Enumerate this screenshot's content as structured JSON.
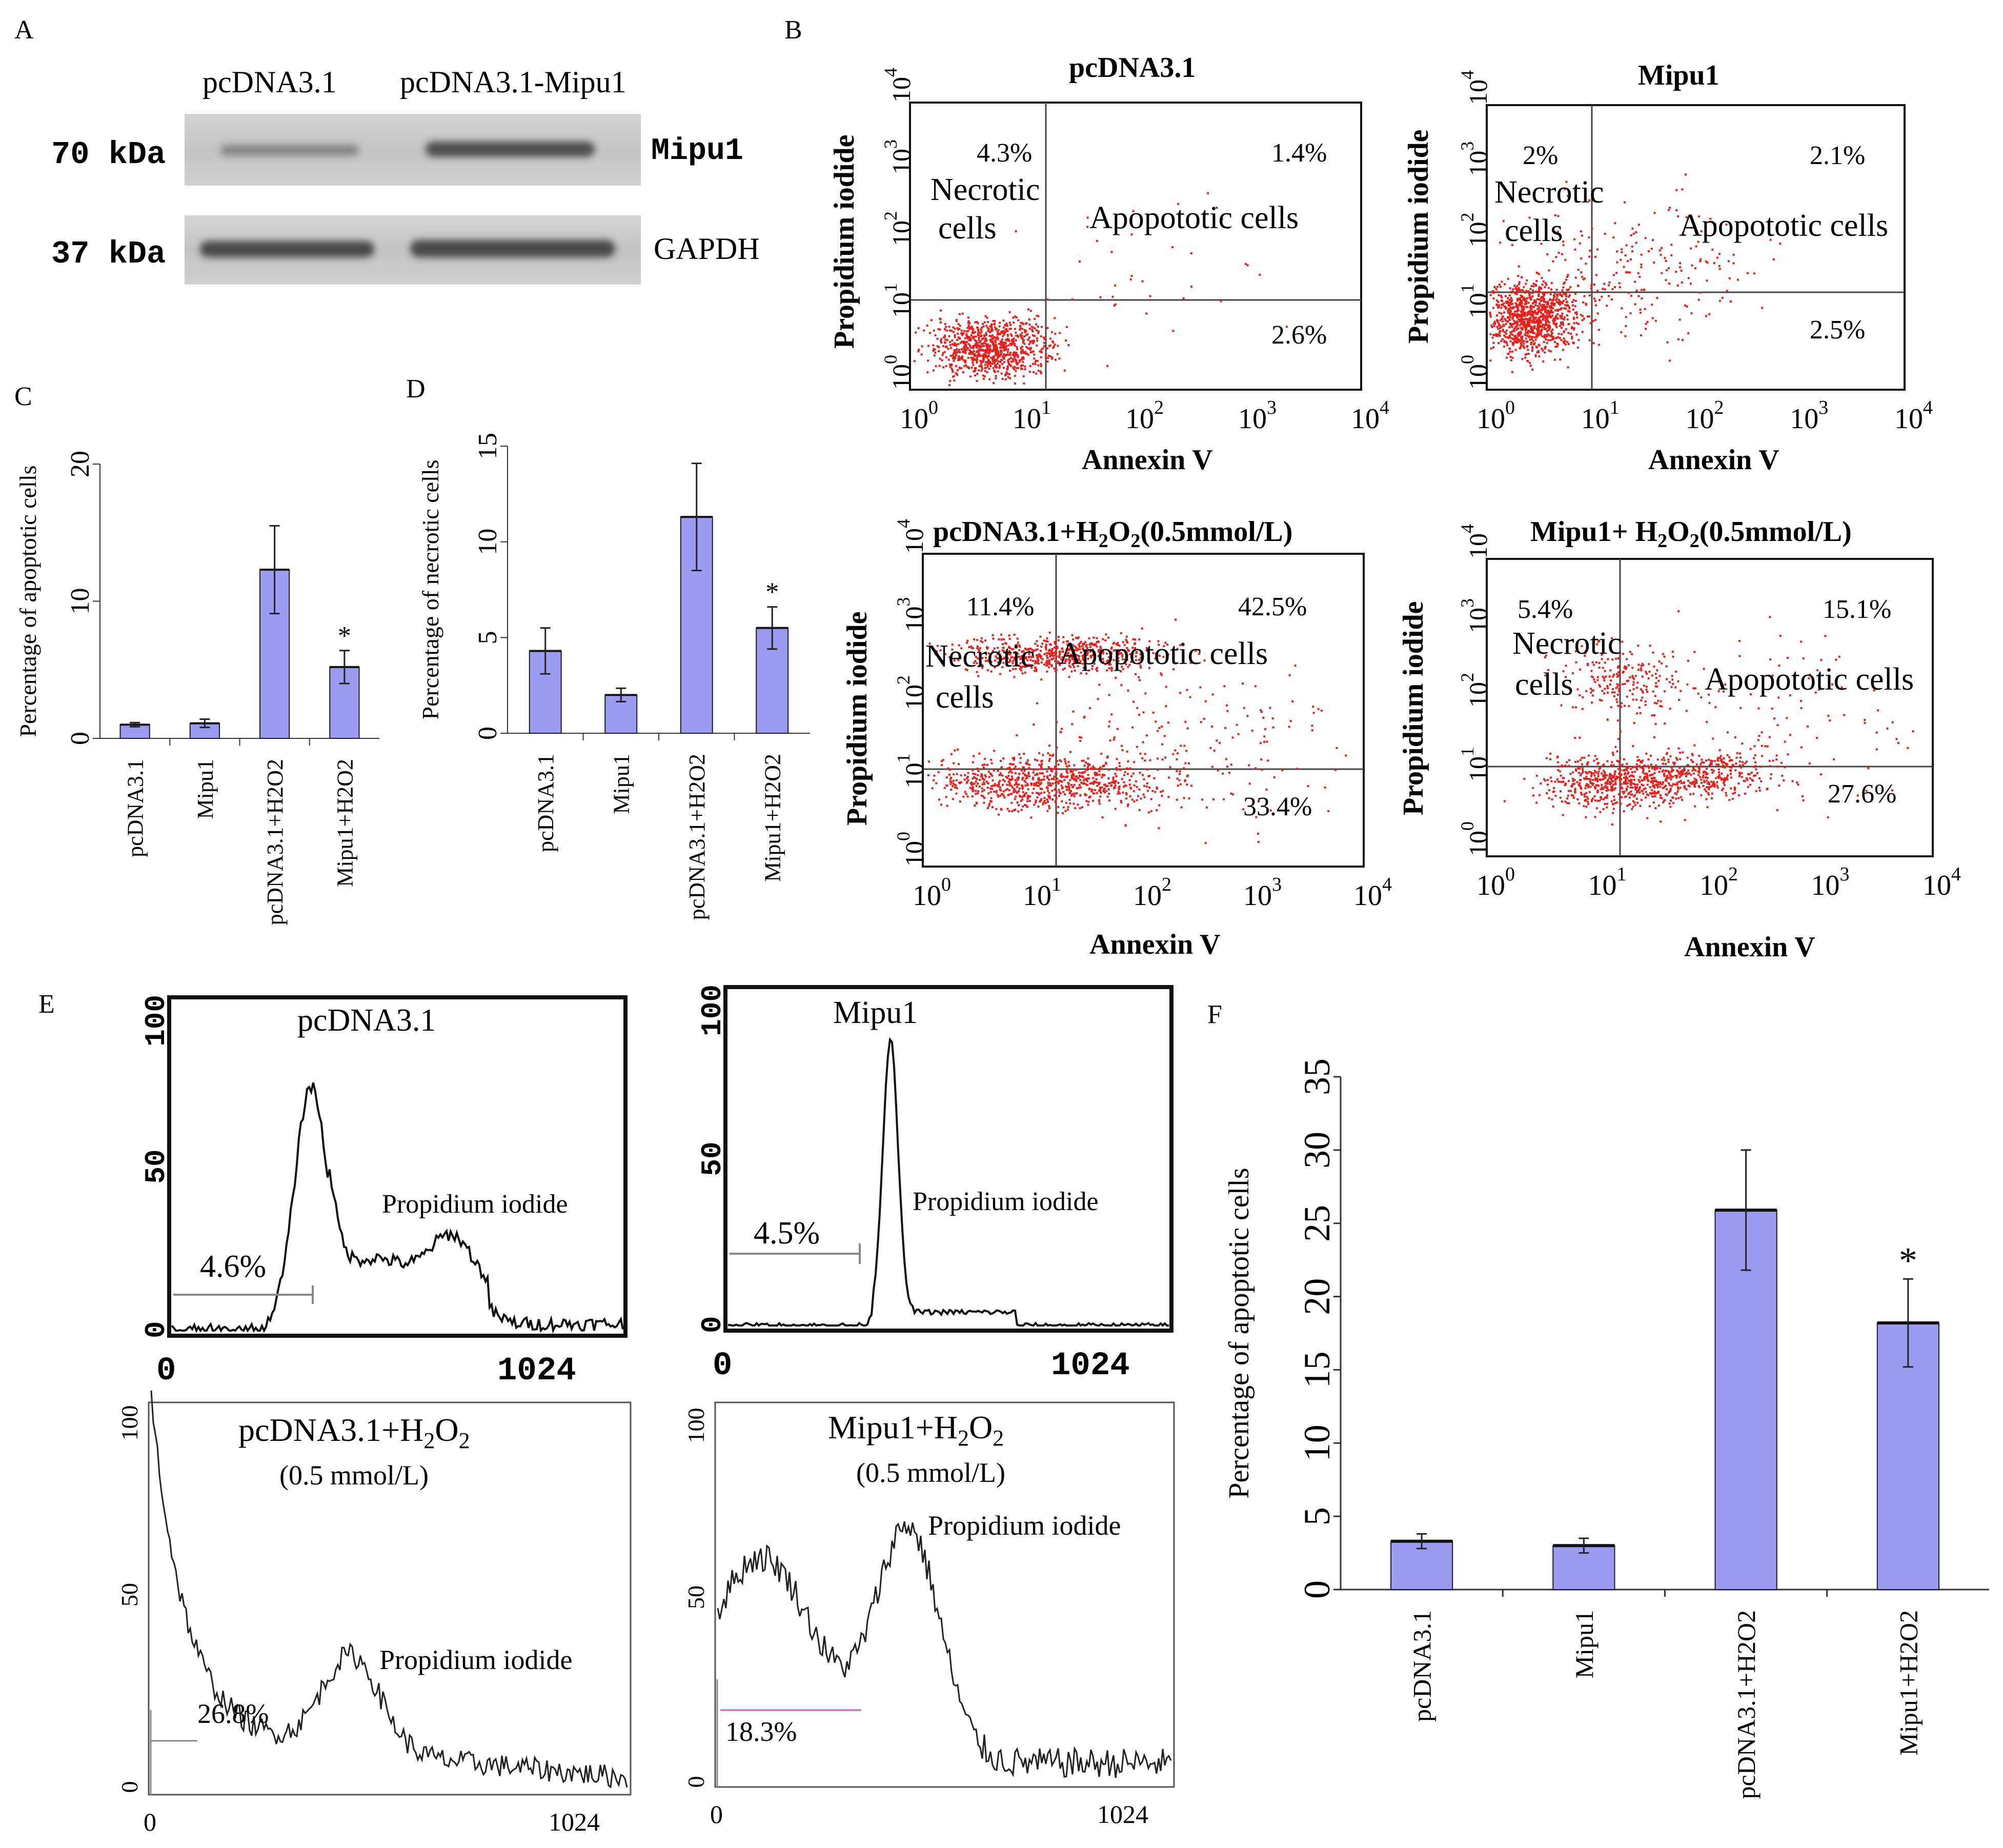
{
  "figure": {
    "panel_labels": [
      "A",
      "B",
      "C",
      "D",
      "E",
      "F"
    ],
    "colors": {
      "bar_fill": "#9b9bf2",
      "bar_stroke": "#1a1a1a",
      "dots": "#e8201c",
      "ink": "#111111",
      "band": "#3a3a3a",
      "gate_grey": "#888888",
      "gate_pink": "#c060c0"
    }
  },
  "western_blot": {
    "lane_labels": [
      "pcDNA3.1",
      "pcDNA3.1-Mipu1"
    ],
    "rows": [
      {
        "mw": "70  kDa",
        "protein": "Mipu1",
        "intensity": [
          0.45,
          0.85
        ]
      },
      {
        "mw": "37  kDa",
        "protein": "GAPDH",
        "intensity": [
          0.9,
          0.9
        ]
      }
    ]
  },
  "flow_cytometry": {
    "x_label": "Annexin V",
    "y_label": "Propidium iodide",
    "necrotic_label_1": "Necrotic",
    "necrotic_label_2": "cells",
    "apoptotic_label": "Apopototic cells",
    "tick_base": "10",
    "tick_exponents": [
      "0",
      "1",
      "2",
      "3",
      "4"
    ],
    "plots": [
      {
        "title": "pcDNA3.1",
        "title_suffix": "",
        "ul": "4.3%",
        "ur": "1.4%",
        "lr": "2.6%"
      },
      {
        "title": "Mipu1",
        "title_suffix": "",
        "ul": "2%",
        "ur": "2.1%",
        "lr": "2.5%"
      },
      {
        "title": "pcDNA3.1+H",
        "h2o2_sub": "2",
        "title_o": "O",
        "title_suffix": "(0.5mmol/L)",
        "ul": "11.4%",
        "ur": "42.5%",
        "lr": "33.4%"
      },
      {
        "title": "Mipu1+ H",
        "h2o2_sub": "2",
        "title_o": "O",
        "title_suffix": "(0.5mmol/L)",
        "ul": "5.4%",
        "ur": "15.1%",
        "lr": "27.6%"
      }
    ]
  },
  "histograms": {
    "x_label": "Propidium iodide",
    "x_min": "0",
    "x_max": "1024",
    "y_ticks": [
      "0",
      "50",
      "100"
    ],
    "plots": [
      {
        "title": "pcDNA3.1",
        "subtitle": "",
        "gate_value": "4.6%"
      },
      {
        "title": "Mipu1",
        "subtitle": "",
        "gate_value": "4.5%"
      },
      {
        "title": "pcDNA3.1+H",
        "title_sub": "2",
        "title_o": "O",
        "title_sub2": "2",
        "subtitle": "(0.5 mmol/L)",
        "gate_value": "26.8%"
      },
      {
        "title": "Mipu1+H",
        "title_sub": "2",
        "title_o": "O",
        "title_sub2": "2",
        "subtitle": "(0.5 mmol/L)",
        "gate_value": "18.3%"
      }
    ]
  },
  "chart_data": [
    {
      "panel": "C",
      "type": "bar",
      "categories": [
        "pcDNA3.1",
        "Mipu1",
        "pcDNA3.1+H2O2",
        "Mipu1+H2O2"
      ],
      "values": [
        1.0,
        1.1,
        12.3,
        5.2
      ],
      "errors": [
        0.15,
        0.3,
        3.2,
        1.2
      ],
      "significance": [
        "",
        "",
        "",
        "*"
      ],
      "ylabel": "Percentage of apoptotic cells",
      "ylim": [
        0,
        20
      ],
      "yticks": [
        "0",
        "10",
        "20"
      ]
    },
    {
      "panel": "D",
      "type": "bar",
      "categories": [
        "pcDNA3.1",
        "Mipu1",
        "pcDNA3.1+H2O2",
        "Mipu1+H2O2"
      ],
      "values": [
        4.3,
        2.0,
        11.3,
        5.5
      ],
      "errors": [
        1.2,
        0.35,
        2.8,
        1.1
      ],
      "significance": [
        "",
        "",
        "",
        "*"
      ],
      "ylabel": "Percentage of necrotic cells",
      "ylim": [
        0,
        15
      ],
      "yticks": [
        "0",
        "5",
        "10",
        "15"
      ]
    },
    {
      "panel": "F",
      "type": "bar",
      "categories": [
        "pcDNA3.1",
        "Mipu1",
        "pcDNA3.1+H2O2",
        "Mipu1+H2O2"
      ],
      "values": [
        3.3,
        3.0,
        25.9,
        18.2
      ],
      "errors": [
        0.5,
        0.5,
        4.1,
        3.0
      ],
      "significance": [
        "",
        "",
        "",
        "*"
      ],
      "ylabel": "Percentage of apoptotic cells",
      "ylim": [
        0,
        35
      ],
      "yticks": [
        "0",
        "5",
        "10",
        "15",
        "20",
        "25",
        "30",
        "35"
      ]
    }
  ]
}
